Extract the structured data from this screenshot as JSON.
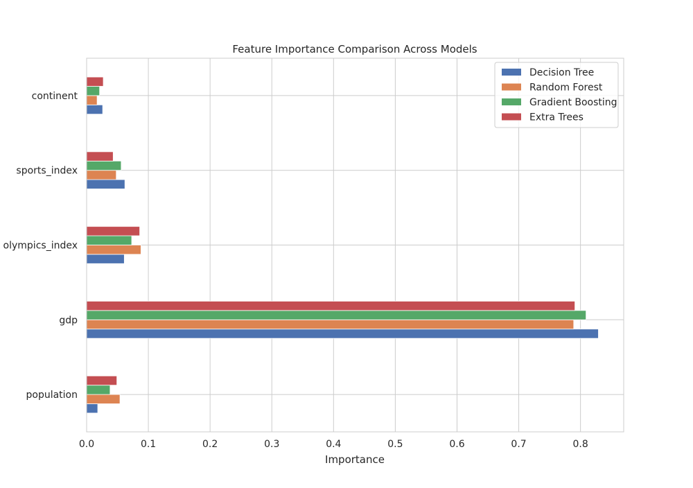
{
  "chart_data": {
    "type": "bar",
    "orientation": "horizontal",
    "title": "Feature Importance Comparison Across Models",
    "xlabel": "Importance",
    "ylabel": "",
    "xlim": [
      0,
      0.87
    ],
    "xticks": [
      0.0,
      0.1,
      0.2,
      0.3,
      0.4,
      0.5,
      0.6,
      0.7,
      0.8
    ],
    "xtick_labels": [
      "0.0",
      "0.1",
      "0.2",
      "0.3",
      "0.4",
      "0.5",
      "0.6",
      "0.7",
      "0.8"
    ],
    "categories": [
      "population",
      "gdp",
      "olympics_index",
      "sports_index",
      "continent"
    ],
    "grid": true,
    "legend_position": "top-right",
    "series": [
      {
        "name": "Decision Tree",
        "color": "#4c72b0",
        "values": [
          0.018,
          0.829,
          0.061,
          0.062,
          0.026
        ]
      },
      {
        "name": "Random Forest",
        "color": "#dd8452",
        "values": [
          0.054,
          0.789,
          0.088,
          0.048,
          0.017
        ]
      },
      {
        "name": "Gradient Boosting",
        "color": "#55a868",
        "values": [
          0.038,
          0.809,
          0.073,
          0.056,
          0.021
        ]
      },
      {
        "name": "Extra Trees",
        "color": "#c44e52",
        "values": [
          0.049,
          0.791,
          0.086,
          0.043,
          0.027
        ]
      }
    ]
  }
}
